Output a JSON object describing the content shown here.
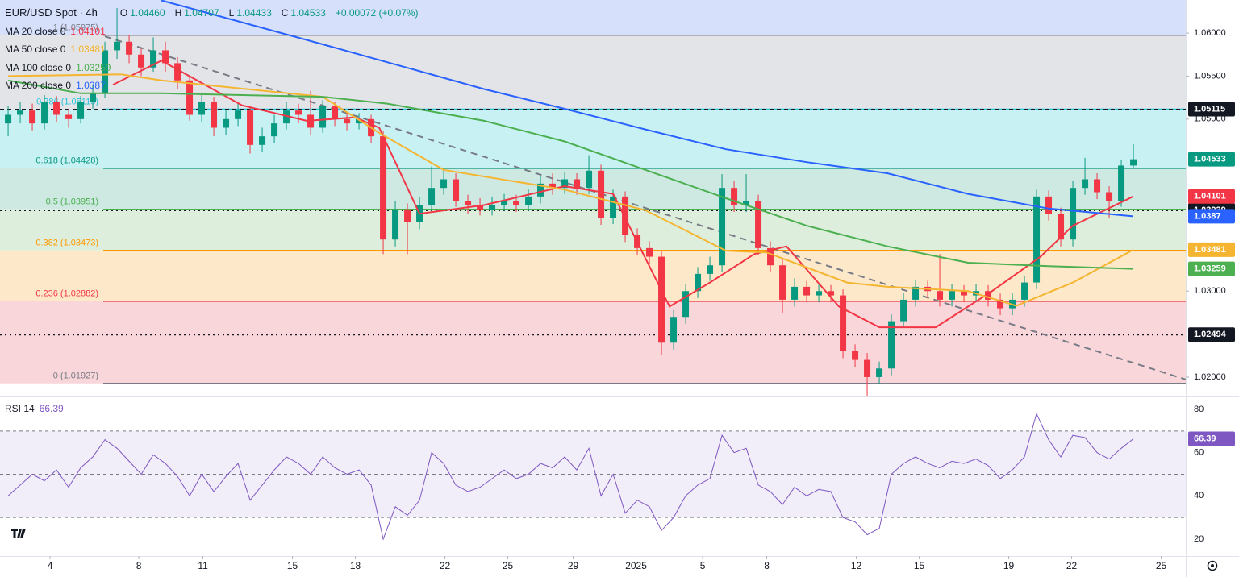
{
  "chart_data": {
    "type": "candlestick",
    "title": "EUR/USD Spot · 4h",
    "quote": [
      {
        "label": "O",
        "value": "1.04460"
      },
      {
        "label": "H",
        "value": "1.04707"
      },
      {
        "label": "L",
        "value": "1.04433"
      },
      {
        "label": "C",
        "value": "1.04533"
      },
      {
        "label": "",
        "value": "+0.00072 (+0.07%)"
      }
    ],
    "candles": {
      "up_color": "#089981",
      "down_color": "#f23645",
      "open": [
        1.0495,
        1.0505,
        1.051,
        1.0495,
        1.052,
        1.0505,
        1.05,
        1.052,
        1.053,
        1.058,
        1.059,
        1.0575,
        1.056,
        1.058,
        1.0565,
        1.0545,
        1.0505,
        1.052,
        1.049,
        1.05,
        1.051,
        1.047,
        1.048,
        1.0495,
        1.051,
        1.0505,
        1.049,
        1.0515,
        1.05,
        1.0495,
        1.05,
        1.048,
        1.036,
        1.0395,
        1.038,
        1.04,
        1.042,
        1.043,
        1.0405,
        1.04,
        1.0395,
        1.04,
        1.0405,
        1.04,
        1.041,
        1.0425,
        1.042,
        1.043,
        1.042,
        1.044,
        1.0385,
        1.041,
        1.0365,
        1.035,
        1.034,
        1.024,
        1.027,
        1.03,
        1.032,
        1.033,
        1.042,
        1.04,
        1.0405,
        1.035,
        1.033,
        1.029,
        1.0305,
        1.0295,
        1.03,
        1.0295,
        1.023,
        1.022,
        1.02,
        1.021,
        1.0265,
        1.029,
        1.0305,
        1.03,
        1.029,
        1.03,
        1.0295,
        1.03,
        1.029,
        1.028,
        1.029,
        1.031,
        1.041,
        1.039,
        1.036,
        1.042,
        1.043,
        1.0415,
        1.0405,
        1.0446
      ],
      "high": [
        1.0515,
        1.052,
        1.0518,
        1.0528,
        1.0527,
        1.0512,
        1.0527,
        1.054,
        1.059,
        1.0629,
        1.0598,
        1.0582,
        1.0595,
        1.059,
        1.0572,
        1.055,
        1.0528,
        1.0526,
        1.051,
        1.0518,
        1.0515,
        1.049,
        1.0505,
        1.052,
        1.0518,
        1.0533,
        1.0522,
        1.052,
        1.0508,
        1.0507,
        1.0505,
        1.0486,
        1.0405,
        1.0402,
        1.041,
        1.0445,
        1.0443,
        1.0437,
        1.0412,
        1.0408,
        1.041,
        1.0413,
        1.0412,
        1.0418,
        1.0434,
        1.0437,
        1.0438,
        1.0437,
        1.0458,
        1.0447,
        1.0418,
        1.0416,
        1.0373,
        1.0358,
        1.0346,
        1.0278,
        1.0308,
        1.0328,
        1.034,
        1.0436,
        1.0428,
        1.0436,
        1.0412,
        1.0358,
        1.0337,
        1.0315,
        1.0312,
        1.0308,
        1.0307,
        1.0302,
        1.0238,
        1.0228,
        1.0218,
        1.0273,
        1.0298,
        1.0313,
        1.0312,
        1.0343,
        1.0308,
        1.0307,
        1.0308,
        1.0307,
        1.0297,
        1.0298,
        1.0318,
        1.0418,
        1.0417,
        1.0397,
        1.0428,
        1.0455,
        1.0437,
        1.0422,
        1.0453,
        1.04707
      ],
      "low": [
        1.048,
        1.0495,
        1.0487,
        1.0488,
        1.0497,
        1.049,
        1.0495,
        1.0512,
        1.0525,
        1.057,
        1.0565,
        1.055,
        1.0555,
        1.0555,
        1.0535,
        1.0498,
        1.0497,
        1.048,
        1.0482,
        1.0492,
        1.046,
        1.0462,
        1.0472,
        1.0488,
        1.0495,
        1.0482,
        1.0484,
        1.0492,
        1.0487,
        1.0488,
        1.0472,
        1.0343,
        1.0352,
        1.0343,
        1.0372,
        1.0393,
        1.0412,
        1.0398,
        1.039,
        1.0388,
        1.0388,
        1.0393,
        1.0392,
        1.0393,
        1.0402,
        1.0412,
        1.0413,
        1.0412,
        1.0413,
        1.0377,
        1.0378,
        1.0357,
        1.0342,
        1.0332,
        1.0226,
        1.0232,
        1.0262,
        1.0292,
        1.0312,
        1.0322,
        1.0392,
        1.0392,
        1.0342,
        1.0322,
        1.0275,
        1.0282,
        1.0287,
        1.0287,
        1.0287,
        1.0222,
        1.0212,
        1.0178,
        1.0192,
        1.0202,
        1.0257,
        1.0282,
        1.0292,
        1.0282,
        1.0282,
        1.0287,
        1.0287,
        1.0282,
        1.0272,
        1.0272,
        1.0282,
        1.0302,
        1.0382,
        1.0352,
        1.0352,
        1.0412,
        1.0407,
        1.0385,
        1.0398,
        1.04433
      ],
      "close": [
        1.0505,
        1.051,
        1.0495,
        1.052,
        1.0505,
        1.05,
        1.052,
        1.053,
        1.058,
        1.059,
        1.0575,
        1.056,
        1.058,
        1.0565,
        1.0545,
        1.0505,
        1.052,
        1.049,
        1.05,
        1.051,
        1.047,
        1.048,
        1.0495,
        1.051,
        1.0505,
        1.049,
        1.0515,
        1.05,
        1.0495,
        1.05,
        1.048,
        1.036,
        1.0395,
        1.038,
        1.04,
        1.042,
        1.043,
        1.0405,
        1.04,
        1.0395,
        1.04,
        1.0405,
        1.04,
        1.041,
        1.0425,
        1.042,
        1.043,
        1.042,
        1.044,
        1.0385,
        1.041,
        1.0365,
        1.035,
        1.034,
        1.024,
        1.027,
        1.03,
        1.032,
        1.033,
        1.042,
        1.04,
        1.0405,
        1.035,
        1.033,
        1.029,
        1.0305,
        1.0295,
        1.03,
        1.0295,
        1.023,
        1.022,
        1.02,
        1.021,
        1.0265,
        1.029,
        1.0305,
        1.03,
        1.029,
        1.03,
        1.0295,
        1.03,
        1.029,
        1.028,
        1.029,
        1.031,
        1.041,
        1.039,
        1.036,
        1.042,
        1.043,
        1.0415,
        1.0405,
        1.0446,
        1.04533
      ]
    },
    "series": [
      {
        "name": "MA 20 close 0",
        "color": "#f23645",
        "x": [
          8.67,
          12.67,
          19.33,
          24.67,
          28.67,
          30.67,
          34,
          39.33,
          46,
          50,
          54.67,
          58,
          61.67,
          64.33,
          68.67,
          72,
          76.67,
          81.33,
          85.33,
          88,
          93
        ],
        "values": [
          1.054,
          1.0568,
          1.0516,
          1.0498,
          1.0502,
          1.049,
          1.039,
          1.04,
          1.0422,
          1.0413,
          1.0282,
          1.031,
          1.0343,
          1.0352,
          1.0282,
          1.0258,
          1.0258,
          1.03,
          1.034,
          1.0376,
          1.04101
        ]
      },
      {
        "name": "MA 50 close 0",
        "color": "#f5b531",
        "x": [
          0,
          9.33,
          12.67,
          26,
          30.67,
          36,
          46,
          52.67,
          59.33,
          62.67,
          69.33,
          72.67,
          79.33,
          83.33,
          88,
          93
        ],
        "values": [
          1.055,
          1.0552,
          1.0545,
          1.0526,
          1.0484,
          1.0441,
          1.0418,
          1.0394,
          1.0347,
          1.0345,
          1.031,
          1.0305,
          1.03,
          1.0283,
          1.031,
          1.03481
        ]
      },
      {
        "name": "MA 100 close 0",
        "color": "#4caf50",
        "x": [
          0,
          6,
          12.67,
          26,
          31.33,
          39.33,
          46,
          52.67,
          59.33,
          66,
          72.67,
          79.33,
          86,
          93
        ],
        "values": [
          1.0545,
          1.053,
          1.053,
          1.0526,
          1.0518,
          1.0498,
          1.0474,
          1.0441,
          1.0408,
          1.0376,
          1.0352,
          1.0333,
          1.0329,
          1.03259
        ]
      },
      {
        "name": "MA 200 close 0",
        "color": "#2962ff",
        "x": [
          12.67,
          26,
          39.33,
          46,
          52.67,
          59.33,
          66,
          72.67,
          79.33,
          86,
          93
        ],
        "values": [
          1.0638,
          1.0587,
          1.0535,
          1.0512,
          1.0488,
          1.0465,
          1.045,
          1.0437,
          1.0413,
          1.0396,
          1.0387
        ]
      }
    ],
    "xlim": [
      -0.67,
      97.33
    ],
    "ylim": [
      1.01784,
      1.06385
    ],
    "yticks": [
      {
        "value": 1.06,
        "label": "1.06000"
      },
      {
        "value": 1.055,
        "label": "1.05500"
      },
      {
        "value": 1.05,
        "label": "1.05000"
      },
      {
        "value": 1.03,
        "label": "1.03000"
      },
      {
        "value": 1.02,
        "label": "1.02000"
      }
    ],
    "xticks": [
      {
        "value": 3.47,
        "label": "4"
      },
      {
        "value": 10.8,
        "label": "8"
      },
      {
        "value": 16.1,
        "label": "11"
      },
      {
        "value": 23.5,
        "label": "15"
      },
      {
        "value": 28.7,
        "label": "18"
      },
      {
        "value": 36.1,
        "label": "22"
      },
      {
        "value": 41.3,
        "label": "25"
      },
      {
        "value": 46.7,
        "label": "29"
      },
      {
        "value": 51.9,
        "label": "2025"
      },
      {
        "value": 57.4,
        "label": "5"
      },
      {
        "value": 62.7,
        "label": "8"
      },
      {
        "value": 70.1,
        "label": "12"
      },
      {
        "value": 75.3,
        "label": "15"
      },
      {
        "value": 82.7,
        "label": "19"
      },
      {
        "value": 87.9,
        "label": "22"
      },
      {
        "value": 95.3,
        "label": "25"
      }
    ],
    "top_zone_color": "#d6e0fb",
    "fib": [
      {
        "label": "1 (1.05975)",
        "value": 1.05975,
        "color": "#787b86",
        "zone_color": "#e3e4e8"
      },
      {
        "label": "0.786 (1.05115)",
        "value": 1.05115,
        "color": "#26c6da",
        "zone_color": "#c8f1f4"
      },
      {
        "label": "0.618 (1.04428)",
        "value": 1.04428,
        "color": "#089981",
        "zone_color": "#cde9e2"
      },
      {
        "label": "0.5 (1.03951)",
        "value": 1.03951,
        "color": "#4caf50",
        "zone_color": "#ddefdc"
      },
      {
        "label": "0.382 (1.03473)",
        "value": 1.03473,
        "color": "#ff9800",
        "zone_color": "#fde9c9"
      },
      {
        "label": "0.236 (1.02882)",
        "value": 1.02882,
        "color": "#f23645",
        "zone_color": "#f9d6da"
      },
      {
        "label": "0 (1.01927)",
        "value": 1.01927,
        "color": "#787b86",
        "zone_color": null
      }
    ],
    "price_lines": [
      {
        "value": 1.05115,
        "style": "dashed",
        "color": "#131722"
      },
      {
        "value": 1.03939,
        "style": "dotted",
        "color": "#131722"
      },
      {
        "value": 1.02494,
        "style": "dotted",
        "color": "#131722"
      }
    ],
    "trendline": {
      "x": [
        8,
        97.33
      ],
      "y": [
        1.05962,
        1.01972
      ],
      "color": "#787b86"
    },
    "rsi": {
      "name": "RSI 14",
      "color": "#7e57c2",
      "ylim": [
        12.17,
        84.85
      ],
      "yticks": [
        80,
        60,
        40,
        20
      ],
      "levels": [
        70,
        50,
        30
      ],
      "values": [
        40,
        45,
        50,
        47,
        52,
        44,
        53,
        58,
        66,
        62,
        56,
        50,
        59,
        55,
        49,
        40,
        50,
        42,
        49,
        55,
        38,
        45,
        52,
        58,
        55,
        50,
        58,
        53,
        50,
        52,
        45,
        20,
        35,
        31,
        38,
        60,
        55,
        45,
        42,
        44,
        48,
        52,
        48,
        50,
        55,
        53,
        58,
        52,
        62,
        40,
        50,
        32,
        38,
        35,
        24,
        30,
        40,
        45,
        48,
        68,
        60,
        62,
        45,
        42,
        36,
        44,
        40,
        43,
        42,
        30,
        28,
        22,
        25,
        50,
        55,
        58,
        55,
        53,
        56,
        55,
        57,
        54,
        48,
        52,
        58,
        78,
        66,
        58,
        68,
        67,
        60,
        57,
        62,
        66.39
      ]
    }
  }
}
